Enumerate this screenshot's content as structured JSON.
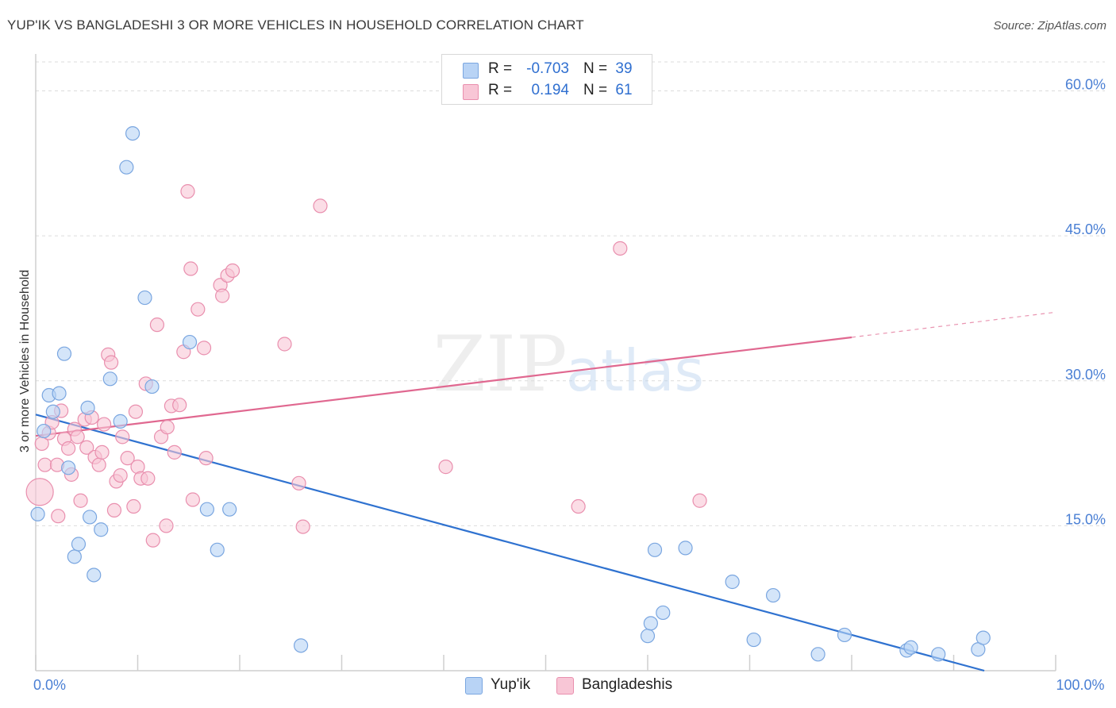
{
  "title": "YUP'IK VS BANGLADESHI 3 OR MORE VEHICLES IN HOUSEHOLD CORRELATION CHART",
  "source": "Source: ZipAtlas.com",
  "watermark": {
    "zip": "ZIP",
    "atlas": "atlas"
  },
  "legend": {
    "rows": [
      {
        "r_label": "R =",
        "r_value": "-0.703",
        "n_label": "N =",
        "n_value": "39",
        "color": "#b8d3f5",
        "stroke": "#7aa6e0"
      },
      {
        "r_label": "R =",
        "r_value": "0.194",
        "n_label": "N =",
        "n_value": "61",
        "color": "#f8c6d6",
        "stroke": "#e98fae"
      }
    ]
  },
  "bottom_legend": [
    {
      "label": "Yup'ik",
      "color": "#b8d3f5",
      "stroke": "#7aa6e0"
    },
    {
      "label": "Bangladeshis",
      "color": "#f8c6d6",
      "stroke": "#e98fae"
    }
  ],
  "chart_data": {
    "type": "scatter",
    "title": "YUP'IK VS BANGLADESHI 3 OR MORE VEHICLES IN HOUSEHOLD CORRELATION CHART",
    "xlabel": "",
    "ylabel": "3 or more Vehicles in Household",
    "xlim": [
      0,
      100
    ],
    "ylim": [
      0,
      63
    ],
    "x_tick_labels": [
      {
        "value": 0,
        "label": "0.0%"
      },
      {
        "value": 100,
        "label": "100.0%"
      }
    ],
    "y_tick_labels": [
      {
        "value": 15,
        "label": "15.0%"
      },
      {
        "value": 30,
        "label": "30.0%"
      },
      {
        "value": 45,
        "label": "45.0%"
      },
      {
        "value": 60,
        "label": "60.0%"
      }
    ],
    "series": [
      {
        "name": "Yup'ik",
        "color": "#b8d3f5",
        "stroke": "#7aa6e0",
        "line_color": "#2f72d0",
        "trend": {
          "x0": 0,
          "y0": 26.5,
          "x1": 93,
          "y1": 0
        },
        "points": [
          [
            0.2,
            16.2
          ],
          [
            0.8,
            24.8
          ],
          [
            1.3,
            28.5
          ],
          [
            1.7,
            26.8
          ],
          [
            2.3,
            28.7
          ],
          [
            2.8,
            32.8
          ],
          [
            3.2,
            21.0
          ],
          [
            3.8,
            11.8
          ],
          [
            4.2,
            13.1
          ],
          [
            5.1,
            27.2
          ],
          [
            5.3,
            15.9
          ],
          [
            5.7,
            9.9
          ],
          [
            6.4,
            14.6
          ],
          [
            7.3,
            30.2
          ],
          [
            8.3,
            25.8
          ],
          [
            8.9,
            52.1
          ],
          [
            9.5,
            55.6
          ],
          [
            10.7,
            38.6
          ],
          [
            11.4,
            29.4
          ],
          [
            15.1,
            34.0
          ],
          [
            16.8,
            16.7
          ],
          [
            17.8,
            12.5
          ],
          [
            19.0,
            16.7
          ],
          [
            26.0,
            2.6
          ],
          [
            60.0,
            3.6
          ],
          [
            60.3,
            4.9
          ],
          [
            60.7,
            12.5
          ],
          [
            61.5,
            6.0
          ],
          [
            63.7,
            12.7
          ],
          [
            68.3,
            9.2
          ],
          [
            70.4,
            3.2
          ],
          [
            72.3,
            7.8
          ],
          [
            76.7,
            1.7
          ],
          [
            79.3,
            3.7
          ],
          [
            85.4,
            2.1
          ],
          [
            85.8,
            2.4
          ],
          [
            88.5,
            1.7
          ],
          [
            92.4,
            2.2
          ],
          [
            92.9,
            3.4
          ]
        ]
      },
      {
        "name": "Bangladeshis",
        "color": "#f8c6d6",
        "stroke": "#e98fae",
        "line_color": "#e06890",
        "trend": {
          "x0": 0,
          "y0": 24.3,
          "x1": 80,
          "y1": 34.5,
          "x2": 100,
          "y2": 37.1
        },
        "points": [
          [
            0.4,
            18.5
          ],
          [
            0.6,
            23.5
          ],
          [
            0.9,
            21.3
          ],
          [
            1.3,
            24.6
          ],
          [
            1.6,
            25.7
          ],
          [
            2.1,
            21.3
          ],
          [
            2.2,
            16.0
          ],
          [
            2.5,
            26.9
          ],
          [
            2.8,
            24.0
          ],
          [
            3.2,
            23.0
          ],
          [
            3.5,
            20.3
          ],
          [
            3.8,
            25.0
          ],
          [
            4.1,
            24.2
          ],
          [
            4.4,
            17.6
          ],
          [
            4.8,
            26.0
          ],
          [
            5.0,
            23.1
          ],
          [
            5.5,
            26.2
          ],
          [
            5.8,
            22.1
          ],
          [
            6.2,
            21.3
          ],
          [
            6.5,
            22.6
          ],
          [
            6.7,
            25.5
          ],
          [
            7.1,
            32.7
          ],
          [
            7.4,
            31.9
          ],
          [
            7.7,
            16.6
          ],
          [
            7.9,
            19.6
          ],
          [
            8.3,
            20.2
          ],
          [
            8.5,
            24.2
          ],
          [
            9.0,
            22.0
          ],
          [
            9.6,
            17.0
          ],
          [
            9.8,
            26.8
          ],
          [
            10.0,
            21.1
          ],
          [
            10.3,
            19.9
          ],
          [
            10.8,
            29.7
          ],
          [
            11.0,
            19.9
          ],
          [
            11.5,
            13.5
          ],
          [
            11.9,
            35.8
          ],
          [
            12.3,
            24.2
          ],
          [
            12.8,
            15.0
          ],
          [
            12.9,
            25.2
          ],
          [
            13.3,
            27.4
          ],
          [
            13.6,
            22.6
          ],
          [
            14.1,
            27.5
          ],
          [
            14.5,
            33.0
          ],
          [
            14.9,
            49.6
          ],
          [
            15.2,
            41.6
          ],
          [
            15.4,
            17.7
          ],
          [
            15.9,
            37.4
          ],
          [
            16.5,
            33.4
          ],
          [
            16.7,
            22.0
          ],
          [
            18.1,
            39.9
          ],
          [
            18.3,
            38.8
          ],
          [
            18.8,
            40.9
          ],
          [
            19.3,
            41.4
          ],
          [
            24.4,
            33.8
          ],
          [
            25.8,
            19.4
          ],
          [
            26.2,
            14.9
          ],
          [
            27.9,
            48.1
          ],
          [
            40.2,
            21.1
          ],
          [
            53.2,
            17.0
          ],
          [
            57.3,
            43.7
          ],
          [
            65.1,
            17.6
          ]
        ]
      }
    ]
  }
}
